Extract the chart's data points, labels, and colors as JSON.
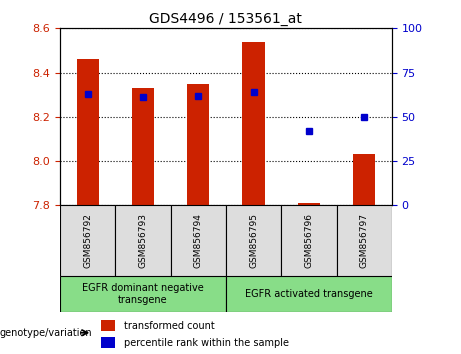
{
  "title": "GDS4496 / 153561_at",
  "samples": [
    "GSM856792",
    "GSM856793",
    "GSM856794",
    "GSM856795",
    "GSM856796",
    "GSM856797"
  ],
  "bar_bottom": 7.8,
  "transformed_count": [
    8.46,
    8.33,
    8.35,
    8.54,
    7.81,
    8.03
  ],
  "percentile_rank": [
    63,
    61,
    62,
    64,
    42,
    50
  ],
  "ylim_left": [
    7.8,
    8.6
  ],
  "ylim_right": [
    0,
    100
  ],
  "yticks_left": [
    7.8,
    8.0,
    8.2,
    8.4,
    8.6
  ],
  "yticks_right": [
    0,
    25,
    50,
    75,
    100
  ],
  "bar_color": "#cc2200",
  "dot_color": "#0000cc",
  "grid_color": "#000000",
  "bg_color": "#ffffff",
  "plot_bg_color": "#ffffff",
  "group1_label": "EGFR dominant negative\ntransgene",
  "group2_label": "EGFR activated transgene",
  "group1_indices": [
    0,
    1,
    2
  ],
  "group2_indices": [
    3,
    4,
    5
  ],
  "group_bg_color": "#88dd88",
  "sample_bg_color": "#dddddd",
  "legend_red_label": "transformed count",
  "legend_blue_label": "percentile rank within the sample",
  "genotype_label": "genotype/variation",
  "left_tick_color": "#cc2200",
  "right_tick_color": "#0000cc",
  "bar_width": 0.4
}
